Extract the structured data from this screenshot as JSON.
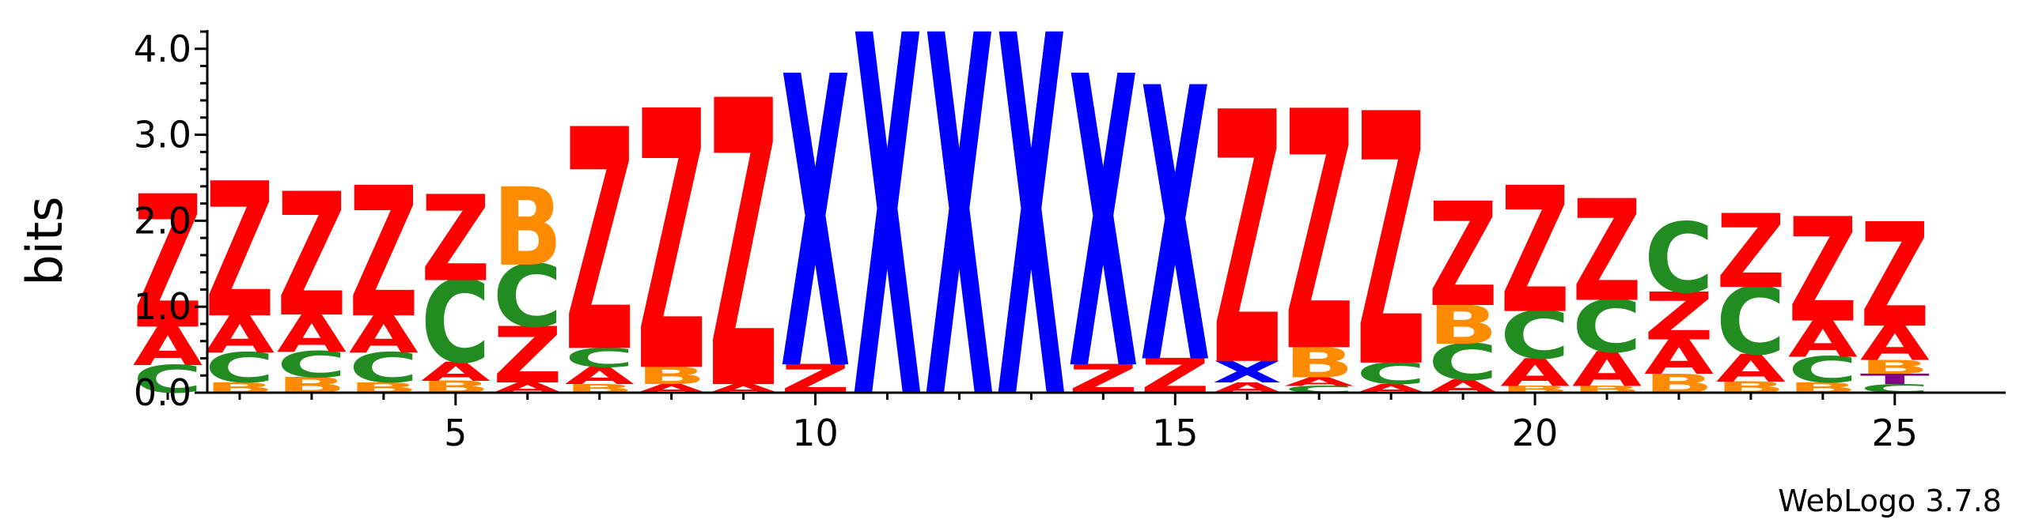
{
  "chart_data": {
    "type": "sequence-logo",
    "ylabel": "bits",
    "ylim": [
      0,
      4.2
    ],
    "y_ticks": [
      "0.0",
      "1.0",
      "2.0",
      "3.0",
      "4.0"
    ],
    "y_tick_values": [
      0,
      1,
      2,
      3,
      4
    ],
    "x_ticks": [
      "5",
      "10",
      "15",
      "20",
      "25"
    ],
    "x_tick_values": [
      5,
      10,
      15,
      20,
      25
    ],
    "credit": "WebLogo 3.7.8",
    "colors": {
      "Z": "#ff0000",
      "A": "#ff0000",
      "X": "#0000ff",
      "C": "#228b22",
      "B": "#ff8c00",
      "T": "#800080"
    },
    "positions": [
      {
        "pos": 1,
        "stack": [
          [
            "C",
            0.32
          ],
          [
            "A",
            0.45
          ],
          [
            "Z",
            1.53
          ]
        ]
      },
      {
        "pos": 2,
        "stack": [
          [
            "B",
            0.12
          ],
          [
            "C",
            0.35
          ],
          [
            "A",
            0.43
          ],
          [
            "Z",
            1.55
          ]
        ]
      },
      {
        "pos": 3,
        "stack": [
          [
            "B",
            0.18
          ],
          [
            "C",
            0.3
          ],
          [
            "A",
            0.43
          ],
          [
            "Z",
            1.42
          ]
        ]
      },
      {
        "pos": 4,
        "stack": [
          [
            "B",
            0.12
          ],
          [
            "C",
            0.35
          ],
          [
            "A",
            0.43
          ],
          [
            "Z",
            1.5
          ]
        ]
      },
      {
        "pos": 5,
        "stack": [
          [
            "B",
            0.14
          ],
          [
            "A",
            0.22
          ],
          [
            "C",
            0.95
          ],
          [
            "Z",
            0.99
          ]
        ]
      },
      {
        "pos": 6,
        "stack": [
          [
            "A",
            0.12
          ],
          [
            "Z",
            0.65
          ],
          [
            "C",
            0.72
          ],
          [
            "B",
            0.9
          ]
        ]
      },
      {
        "pos": 7,
        "stack": [
          [
            "B",
            0.1
          ],
          [
            "A",
            0.2
          ],
          [
            "C",
            0.22
          ],
          [
            "Z",
            2.55
          ]
        ]
      },
      {
        "pos": 8,
        "stack": [
          [
            "A",
            0.1
          ],
          [
            "B",
            0.2
          ],
          [
            "Z",
            2.98
          ]
        ]
      },
      {
        "pos": 9,
        "stack": [
          [
            "A",
            0.1
          ],
          [
            "Z",
            3.3
          ]
        ]
      },
      {
        "pos": 10,
        "stack": [
          [
            "Z",
            0.33
          ],
          [
            "X",
            3.35
          ]
        ]
      },
      {
        "pos": 11,
        "stack": [
          [
            "X",
            4.15
          ]
        ]
      },
      {
        "pos": 12,
        "stack": [
          [
            "X",
            4.15
          ]
        ]
      },
      {
        "pos": 13,
        "stack": [
          [
            "X",
            4.15
          ]
        ]
      },
      {
        "pos": 14,
        "stack": [
          [
            "Z",
            0.33
          ],
          [
            "X",
            3.35
          ]
        ]
      },
      {
        "pos": 15,
        "stack": [
          [
            "Z",
            0.4
          ],
          [
            "X",
            3.15
          ]
        ]
      },
      {
        "pos": 16,
        "stack": [
          [
            "A",
            0.12
          ],
          [
            "X",
            0.25
          ],
          [
            "Z",
            2.9
          ]
        ]
      },
      {
        "pos": 17,
        "stack": [
          [
            "C",
            0.08
          ],
          [
            "A",
            0.1
          ],
          [
            "B",
            0.35
          ],
          [
            "Z",
            2.75
          ]
        ]
      },
      {
        "pos": 18,
        "stack": [
          [
            "A",
            0.1
          ],
          [
            "C",
            0.25
          ],
          [
            "Z",
            2.9
          ]
        ]
      },
      {
        "pos": 19,
        "stack": [
          [
            "A",
            0.15
          ],
          [
            "C",
            0.42
          ],
          [
            "B",
            0.45
          ],
          [
            "Z",
            1.2
          ]
        ]
      },
      {
        "pos": 20,
        "stack": [
          [
            "B",
            0.08
          ],
          [
            "A",
            0.32
          ],
          [
            "C",
            0.55
          ],
          [
            "Z",
            1.45
          ]
        ]
      },
      {
        "pos": 21,
        "stack": [
          [
            "B",
            0.08
          ],
          [
            "A",
            0.4
          ],
          [
            "C",
            0.6
          ],
          [
            "Z",
            1.17
          ]
        ]
      },
      {
        "pos": 22,
        "stack": [
          [
            "B",
            0.22
          ],
          [
            "A",
            0.4
          ],
          [
            "Z",
            0.55
          ],
          [
            "C",
            0.8
          ]
        ]
      },
      {
        "pos": 23,
        "stack": [
          [
            "B",
            0.13
          ],
          [
            "A",
            0.32
          ],
          [
            "C",
            0.78
          ],
          [
            "Z",
            0.85
          ]
        ]
      },
      {
        "pos": 24,
        "stack": [
          [
            "B",
            0.12
          ],
          [
            "C",
            0.3
          ],
          [
            "A",
            0.42
          ],
          [
            "Z",
            1.2
          ]
        ]
      },
      {
        "pos": 25,
        "stack": [
          [
            "C",
            0.1
          ],
          [
            "T",
            0.12
          ],
          [
            "B",
            0.16
          ],
          [
            "A",
            0.4
          ],
          [
            "Z",
            1.2
          ]
        ]
      }
    ]
  }
}
